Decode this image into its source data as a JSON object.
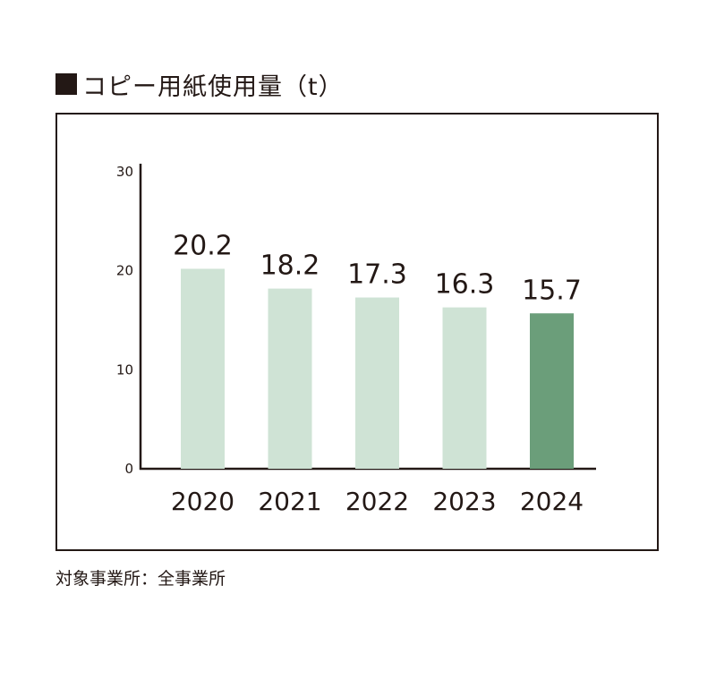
{
  "title": "コピー用紙使用量（t）",
  "note": "対象事業所：全事業所",
  "chart_data": {
    "type": "bar",
    "categories": [
      "2020",
      "2021",
      "2022",
      "2023",
      "2024"
    ],
    "values": [
      20.2,
      18.2,
      17.3,
      16.3,
      15.7
    ],
    "data_labels": [
      "20.2",
      "18.2",
      "17.3",
      "16.3",
      "15.7"
    ],
    "yticks": [
      "0",
      "10",
      "20",
      "30"
    ],
    "ylim": [
      0,
      30
    ],
    "title": "コピー用紙使用量（t）",
    "xlabel": "",
    "ylabel": "",
    "grid": false,
    "colors": {
      "bar": "#cfe3d5",
      "highlight_bar": "#6b9e7a",
      "axis": "#231815",
      "text": "#231815"
    },
    "highlight_index": 4
  }
}
